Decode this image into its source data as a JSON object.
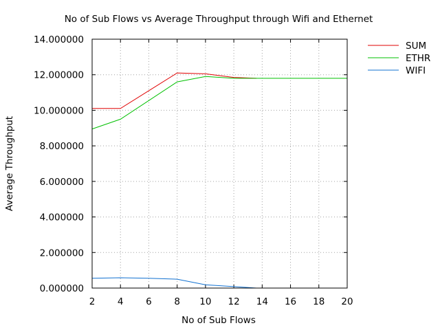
{
  "chart_data": {
    "type": "line",
    "title": "No of Sub Flows vs Average Throughput through Wifi and Ethernet",
    "xlabel": "No of Sub Flows",
    "ylabel": "Average Throughput",
    "xlim": [
      2,
      20
    ],
    "ylim": [
      0,
      14
    ],
    "x_ticks": [
      "2",
      "4",
      "6",
      "8",
      "10",
      "12",
      "14",
      "16",
      "18",
      "20"
    ],
    "y_ticks": [
      "0.000000",
      "2.000000",
      "4.000000",
      "6.000000",
      "8.000000",
      "10.000000",
      "12.000000",
      "14.000000"
    ],
    "grid": true,
    "legend_position": "top-right outside",
    "series": [
      {
        "name": "SUM",
        "color": "#e00000",
        "x": [
          2,
          4,
          8,
          10,
          12,
          13.6
        ],
        "y": [
          10.1,
          10.1,
          12.1,
          12.05,
          11.85,
          11.8
        ]
      },
      {
        "name": "ETHR",
        "color": "#00c000",
        "x": [
          2,
          4,
          8,
          10,
          12,
          14,
          16,
          18,
          20
        ],
        "y": [
          8.95,
          9.5,
          11.6,
          11.9,
          11.8,
          11.8,
          11.8,
          11.8,
          11.8
        ]
      },
      {
        "name": "WIFI",
        "color": "#1070d0",
        "x": [
          2,
          4,
          6,
          8,
          10,
          12,
          13.6
        ],
        "y": [
          0.55,
          0.58,
          0.55,
          0.5,
          0.18,
          0.08,
          0.0
        ]
      }
    ]
  }
}
